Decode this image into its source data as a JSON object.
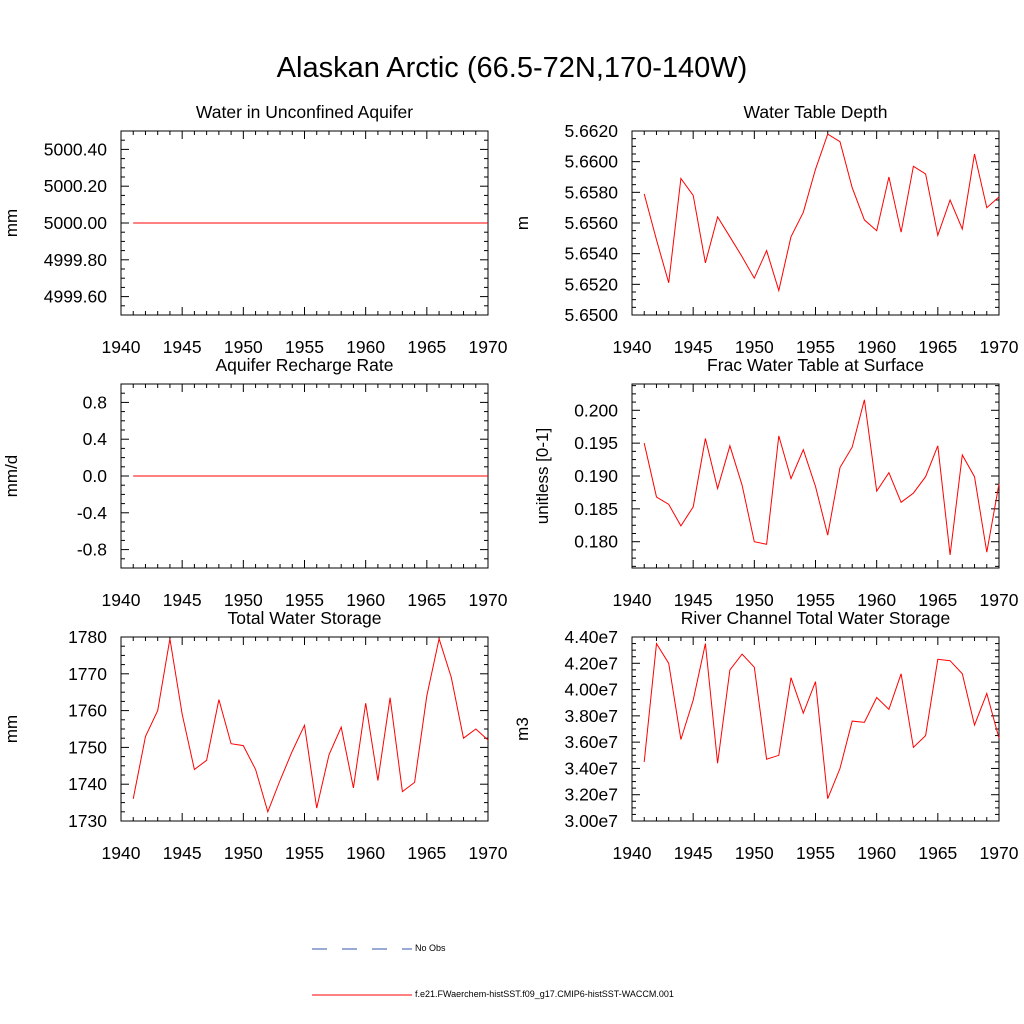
{
  "page": {
    "title": "Alaskan Arctic (66.5-72N,170-140W)"
  },
  "colors": {
    "model": "#ff0000",
    "obs": "#3355aa",
    "axis": "#000000"
  },
  "chart_data": [
    {
      "type": "line",
      "title": "Water in Unconfined Aquifer",
      "ylabel": "mm",
      "xlim": [
        1940,
        1970
      ],
      "ylim": [
        4999.5,
        5000.5
      ],
      "xticks": [
        1940,
        1945,
        1950,
        1955,
        1960,
        1965,
        1970
      ],
      "xtick_labels": [
        "1940",
        "1945",
        "1950",
        "1955",
        "1960",
        "1965",
        "1970"
      ],
      "yticks": [
        4999.6,
        4999.8,
        5000.0,
        5000.2,
        5000.4
      ],
      "ytick_labels": [
        "4999.60",
        "4999.80",
        "5000.00",
        "5000.20",
        "5000.40"
      ],
      "series": [
        {
          "values": [
            5000.0,
            5000.0,
            5000.0,
            5000.0,
            5000.0,
            5000.0,
            5000.0,
            5000.0,
            5000.0,
            5000.0,
            5000.0,
            5000.0,
            5000.0,
            5000.0,
            5000.0,
            5000.0,
            5000.0,
            5000.0,
            5000.0,
            5000.0,
            5000.0,
            5000.0,
            5000.0,
            5000.0,
            5000.0,
            5000.0,
            5000.0,
            5000.0,
            5000.0,
            5000.0
          ]
        }
      ]
    },
    {
      "type": "line",
      "title": "Water Table Depth",
      "ylabel": "m",
      "xlim": [
        1940,
        1970
      ],
      "ylim": [
        5.65,
        5.662
      ],
      "xticks": [
        1940,
        1945,
        1950,
        1955,
        1960,
        1965,
        1970
      ],
      "xtick_labels": [
        "1940",
        "1945",
        "1950",
        "1955",
        "1960",
        "1965",
        "1970"
      ],
      "yticks": [
        5.65,
        5.652,
        5.654,
        5.656,
        5.658,
        5.66,
        5.662
      ],
      "ytick_labels": [
        "5.6500",
        "5.6520",
        "5.6540",
        "5.6560",
        "5.6580",
        "5.6600",
        "5.6620"
      ],
      "series": [
        {
          "values": [
            5.6579,
            5.6549,
            5.6521,
            5.6589,
            5.6578,
            5.6534,
            5.6564,
            5.6551,
            5.6538,
            5.6524,
            5.6542,
            5.6516,
            5.6551,
            5.6567,
            5.6595,
            5.6618,
            5.6613,
            5.6583,
            5.6562,
            5.6555,
            5.659,
            5.6554,
            5.6597,
            5.6592,
            5.6552,
            5.6575,
            5.6556,
            5.6605,
            5.657,
            5.6577
          ]
        }
      ]
    },
    {
      "type": "line",
      "title": "Aquifer Recharge Rate",
      "ylabel": "mm/d",
      "xlim": [
        1940,
        1970
      ],
      "ylim": [
        -1.0,
        1.0
      ],
      "xticks": [
        1940,
        1945,
        1950,
        1955,
        1960,
        1965,
        1970
      ],
      "xtick_labels": [
        "1940",
        "1945",
        "1950",
        "1955",
        "1960",
        "1965",
        "1970"
      ],
      "yticks": [
        -0.8,
        -0.4,
        0.0,
        0.4,
        0.8
      ],
      "ytick_labels": [
        "-0.8",
        "-0.4",
        "0.0",
        "0.4",
        "0.8"
      ],
      "series": [
        {
          "values": [
            0.0,
            0.0,
            0.0,
            0.0,
            0.0,
            0.0,
            0.0,
            0.0,
            0.0,
            0.0,
            0.0,
            0.0,
            0.0,
            0.0,
            0.0,
            0.0,
            0.0,
            0.0,
            0.0,
            0.0,
            0.0,
            0.0,
            0.0,
            0.0,
            0.0,
            0.0,
            0.0,
            0.0,
            0.0,
            0.0
          ]
        }
      ]
    },
    {
      "type": "line",
      "title": "Frac Water Table at Surface",
      "ylabel": "unitless [0-1]",
      "xlim": [
        1940,
        1970
      ],
      "ylim": [
        0.176,
        0.204
      ],
      "xticks": [
        1940,
        1945,
        1950,
        1955,
        1960,
        1965,
        1970
      ],
      "xtick_labels": [
        "1940",
        "1945",
        "1950",
        "1955",
        "1960",
        "1965",
        "1970"
      ],
      "yticks": [
        0.18,
        0.185,
        0.19,
        0.195,
        0.2
      ],
      "ytick_labels": [
        "0.180",
        "0.185",
        "0.190",
        "0.195",
        "0.200"
      ],
      "series": [
        {
          "values": [
            0.195,
            0.1868,
            0.1857,
            0.1824,
            0.1853,
            0.1957,
            0.1881,
            0.1946,
            0.1886,
            0.18,
            0.1796,
            0.1961,
            0.1896,
            0.194,
            0.1884,
            0.181,
            0.1913,
            0.1944,
            0.2016,
            0.1877,
            0.1905,
            0.186,
            0.1874,
            0.1899,
            0.1946,
            0.178,
            0.1932,
            0.1899,
            0.1784,
            0.1888
          ]
        }
      ]
    },
    {
      "type": "line",
      "title": "Total Water Storage",
      "ylabel": "mm",
      "xlim": [
        1940,
        1970
      ],
      "ylim": [
        1730,
        1780
      ],
      "xticks": [
        1940,
        1945,
        1950,
        1955,
        1960,
        1965,
        1970
      ],
      "xtick_labels": [
        "1940",
        "1945",
        "1950",
        "1955",
        "1960",
        "1965",
        "1970"
      ],
      "yticks": [
        1730,
        1740,
        1750,
        1760,
        1770,
        1780
      ],
      "ytick_labels": [
        "1730",
        "1740",
        "1750",
        "1760",
        "1770",
        "1780"
      ],
      "series": [
        {
          "values": [
            1736,
            1753,
            1760,
            1779.5,
            1759,
            1744,
            1746.5,
            1763,
            1751,
            1750.5,
            1744,
            1732.5,
            1741,
            1749,
            1756,
            1733.5,
            1748,
            1755.5,
            1739,
            1762,
            1741,
            1763.5,
            1738,
            1740.5,
            1764,
            1779.5,
            1769,
            1752.5,
            1755,
            1752
          ]
        }
      ]
    },
    {
      "type": "line",
      "title": "River Channel Total Water Storage",
      "ylabel": "m3",
      "xlim": [
        1940,
        1970
      ],
      "ylim": [
        30000000.0,
        44000000.0
      ],
      "xticks": [
        1940,
        1945,
        1950,
        1955,
        1960,
        1965,
        1970
      ],
      "xtick_labels": [
        "1940",
        "1945",
        "1950",
        "1955",
        "1960",
        "1965",
        "1970"
      ],
      "yticks": [
        30000000.0,
        32000000.0,
        34000000.0,
        36000000.0,
        38000000.0,
        40000000.0,
        42000000.0,
        44000000.0
      ],
      "ytick_labels": [
        "3.00e7",
        "3.20e7",
        "3.40e7",
        "3.60e7",
        "3.80e7",
        "4.00e7",
        "4.20e7",
        "4.40e7"
      ],
      "series": [
        {
          "values": [
            34500000.0,
            43500000.0,
            42000000.0,
            36200000.0,
            39200000.0,
            43500000.0,
            34400000.0,
            41500000.0,
            42700000.0,
            41700000.0,
            34700000.0,
            35000000.0,
            40900000.0,
            38200000.0,
            40600000.0,
            31700000.0,
            34000000.0,
            37600000.0,
            37500000.0,
            39400000.0,
            38500000.0,
            41200000.0,
            35600000.0,
            36500000.0,
            42300000.0,
            42200000.0,
            41200000.0,
            37300000.0,
            39700000.0,
            36300000.0
          ]
        }
      ]
    }
  ],
  "legend": {
    "items": [
      {
        "label": "No Obs",
        "style": "dashed"
      },
      {
        "label": "f.e21.FWaerchem-histSST.f09_g17.CMIP6-histSST-WACCM.001",
        "style": "solid"
      }
    ]
  }
}
